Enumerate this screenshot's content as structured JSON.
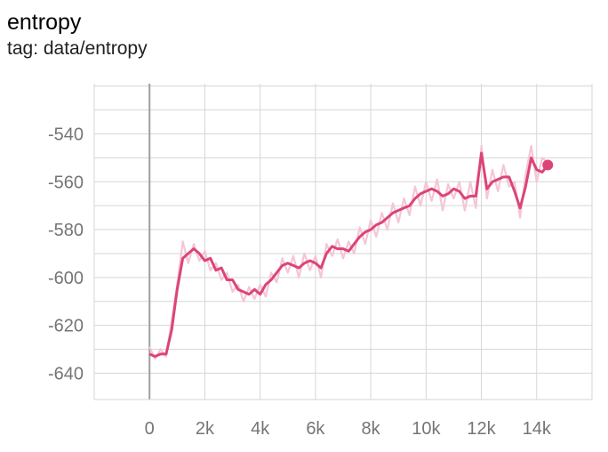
{
  "card": {
    "title": "entropy",
    "tag": "tag: data/entropy"
  },
  "colors": {
    "smoothed": "#dc4479",
    "raw": "#f4c6d6",
    "grid": "#d6d6d6",
    "zero_axis": "#9e9e9e",
    "tick_text": "#757575"
  },
  "chart_data": {
    "type": "line",
    "title": "entropy",
    "xlabel": "",
    "ylabel": "",
    "xlim": [
      -2000,
      16000
    ],
    "ylim": [
      -651,
      -519
    ],
    "x_ticks": [
      0,
      2000,
      4000,
      6000,
      8000,
      10000,
      12000,
      14000
    ],
    "x_tick_labels": [
      "0",
      "2k",
      "4k",
      "6k",
      "8k",
      "10k",
      "12k",
      "14k"
    ],
    "y_ticks": [
      -540,
      -560,
      -580,
      -600,
      -620,
      -640
    ],
    "y_tick_labels": [
      "-540",
      "-560",
      "-580",
      "-600",
      "-620",
      "-640"
    ],
    "grid": true,
    "series": [
      {
        "role": "smoothed",
        "x": [
          0,
          200,
          400,
          600,
          800,
          1000,
          1200,
          1400,
          1600,
          1800,
          2000,
          2200,
          2400,
          2600,
          2800,
          3000,
          3200,
          3400,
          3600,
          3800,
          4000,
          4200,
          4400,
          4600,
          4800,
          5000,
          5200,
          5400,
          5600,
          5800,
          6000,
          6200,
          6400,
          6600,
          6800,
          7000,
          7200,
          7400,
          7600,
          7800,
          8000,
          8200,
          8400,
          8600,
          8800,
          9000,
          9200,
          9400,
          9600,
          9800,
          10000,
          10200,
          10400,
          10600,
          10800,
          11000,
          11200,
          11400,
          11600,
          11800,
          12000,
          12200,
          12400,
          12600,
          12800,
          13000,
          13200,
          13400,
          13600,
          13800,
          14000,
          14200,
          14400
        ],
        "values": [
          -632,
          -633,
          -632,
          -632,
          -622,
          -605,
          -592,
          -590,
          -588,
          -590,
          -593,
          -592,
          -597,
          -596,
          -601,
          -601,
          -605,
          -606,
          -607,
          -605,
          -607,
          -603,
          -601,
          -598,
          -595,
          -594,
          -595,
          -596,
          -594,
          -593,
          -594,
          -596,
          -590,
          -587,
          -588,
          -588,
          -589,
          -586,
          -583,
          -581,
          -580,
          -578,
          -577,
          -575,
          -573,
          -572,
          -571,
          -570,
          -567,
          -565,
          -564,
          -563,
          -564,
          -566,
          -565,
          -563,
          -564,
          -567,
          -566,
          -566,
          -548,
          -563,
          -560,
          -559,
          -558,
          -558,
          -564,
          -571,
          -562,
          -550,
          -555,
          -556,
          -553
        ]
      },
      {
        "role": "raw",
        "x": [
          0,
          200,
          400,
          600,
          800,
          1000,
          1200,
          1400,
          1600,
          1800,
          2000,
          2200,
          2400,
          2600,
          2800,
          3000,
          3200,
          3400,
          3600,
          3800,
          4000,
          4200,
          4400,
          4600,
          4800,
          5000,
          5200,
          5400,
          5600,
          5800,
          6000,
          6200,
          6400,
          6600,
          6800,
          7000,
          7200,
          7400,
          7600,
          7800,
          8000,
          8200,
          8400,
          8600,
          8800,
          9000,
          9200,
          9400,
          9600,
          9800,
          10000,
          10200,
          10400,
          10600,
          10800,
          11000,
          11200,
          11400,
          11600,
          11800,
          12000,
          12200,
          12400,
          12600,
          12800,
          13000,
          13200,
          13400,
          13600,
          13800,
          14000,
          14200,
          14400
        ],
        "values": [
          -629,
          -634,
          -630,
          -633,
          -618,
          -603,
          -585,
          -594,
          -586,
          -593,
          -589,
          -597,
          -594,
          -601,
          -598,
          -606,
          -603,
          -610,
          -604,
          -609,
          -603,
          -608,
          -598,
          -602,
          -592,
          -598,
          -591,
          -600,
          -590,
          -597,
          -591,
          -600,
          -586,
          -591,
          -584,
          -592,
          -585,
          -590,
          -579,
          -586,
          -576,
          -583,
          -573,
          -580,
          -569,
          -577,
          -567,
          -574,
          -562,
          -570,
          -560,
          -568,
          -559,
          -572,
          -561,
          -567,
          -560,
          -572,
          -560,
          -571,
          -545,
          -567,
          -555,
          -564,
          -553,
          -562,
          -560,
          -575,
          -557,
          -545,
          -560,
          -550,
          -552
        ]
      }
    ]
  }
}
